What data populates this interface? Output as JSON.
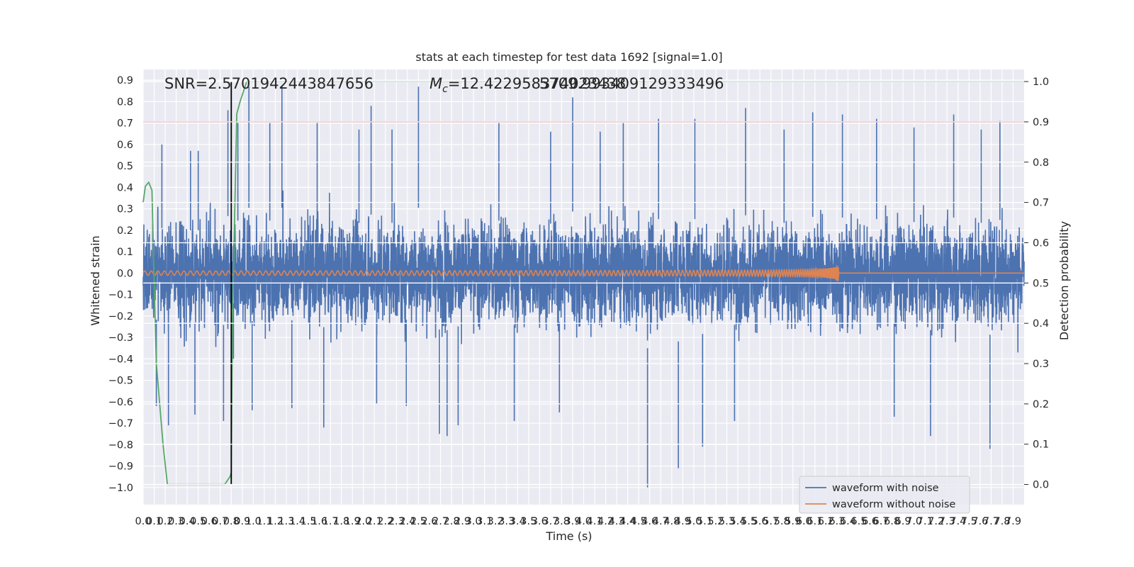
{
  "chart_data": {
    "type": "line",
    "title": "stats at each timestep for test data 1692 [signal=1.0]",
    "xlabel": "Time (s)",
    "ylabel_left": "Whitened strain",
    "ylabel_right": "Detection probability",
    "xlim": [
      0.0,
      8.0
    ],
    "ylim_left": [
      -1.08,
      0.95
    ],
    "ylim_right": [
      -0.05,
      1.03
    ],
    "x_ticks": [
      0.0,
      0.1,
      0.2,
      0.3,
      0.4,
      0.5,
      0.6,
      0.7,
      0.8,
      0.9,
      1.0,
      1.1,
      1.2,
      1.3,
      1.4,
      1.5,
      1.6,
      1.7,
      1.8,
      1.9,
      2.0,
      2.1,
      2.2,
      2.3,
      2.4,
      2.5,
      2.6,
      2.7,
      2.8,
      2.9,
      3.0,
      3.1,
      3.2,
      3.3,
      3.4,
      3.5,
      3.6,
      3.7,
      3.8,
      3.9,
      4.0,
      4.1,
      4.2,
      4.3,
      4.4,
      4.5,
      4.6,
      4.7,
      4.8,
      4.9,
      5.0,
      5.1,
      5.2,
      5.3,
      5.4,
      5.5,
      5.6,
      5.7,
      5.8,
      5.9,
      6.0,
      6.1,
      6.2,
      6.3,
      6.4,
      6.5,
      6.6,
      6.7,
      6.8,
      6.9,
      7.0,
      7.1,
      7.2,
      7.3,
      7.4,
      7.5,
      7.6,
      7.7,
      7.8,
      7.9
    ],
    "x_tick_labels": [
      "0.0",
      "0.1",
      "0.2",
      "0.3",
      "0.4",
      "0.5",
      "0.6",
      "0.7",
      "0.8",
      "0.9",
      "1.0",
      "1.1",
      "1.2",
      "1.3",
      "1.4",
      "1.5",
      "1.6",
      "1.7",
      "1.8",
      "1.9",
      "2.0",
      "2.1",
      "2.2",
      "2.3",
      "2.4",
      "2.5",
      "2.6",
      "2.7",
      "2.8",
      "2.9",
      "3.0",
      "3.1",
      "3.2",
      "3.3",
      "3.4",
      "3.5",
      "3.6",
      "3.7",
      "3.8",
      "3.9",
      "4.0",
      "4.1",
      "4.2",
      "4.3",
      "4.4",
      "4.5",
      "4.6",
      "4.7",
      "4.8",
      "4.9",
      "5.0",
      "5.1",
      "5.2",
      "5.3",
      "5.4",
      "5.5",
      "5.6",
      "5.7",
      "5.8",
      "5.9",
      "6.0",
      "6.1",
      "6.2",
      "6.3",
      "6.4",
      "6.5",
      "6.6",
      "6.7",
      "6.8",
      "6.9",
      "7.0",
      "7.1",
      "7.2",
      "7.3",
      "7.4",
      "7.5",
      "7.6",
      "7.7",
      "7.8",
      "7.9"
    ],
    "y_left_ticks": [
      0.9,
      0.8,
      0.7,
      0.6,
      0.5,
      0.4,
      0.3,
      0.2,
      0.1,
      0.0,
      -0.1,
      -0.2,
      -0.3,
      -0.4,
      -0.5,
      -0.6,
      -0.7,
      -0.8,
      -0.9,
      -1.0
    ],
    "y_left_tick_labels": [
      "0.9",
      "0.8",
      "0.7",
      "0.6",
      "0.5",
      "0.4",
      "0.3",
      "0.2",
      "0.1",
      "0.0",
      "−0.1",
      "−0.2",
      "−0.3",
      "−0.4",
      "−0.5",
      "−0.6",
      "−0.7",
      "−0.8",
      "−0.9",
      "−1.0"
    ],
    "y_right_ticks": [
      1.0,
      0.9,
      0.8,
      0.7,
      0.6,
      0.5,
      0.4,
      0.3,
      0.2,
      0.1,
      0.0
    ],
    "y_right_tick_labels": [
      "1.0",
      "0.9",
      "0.8",
      "0.7",
      "0.6",
      "0.5",
      "0.4",
      "0.3",
      "0.2",
      "0.1",
      "0.0"
    ],
    "annotations": {
      "snr": "SNR=2.5701942443847656",
      "mc_label": "M",
      "mc_sub": "c",
      "mc_value": "=12.422958374023438",
      "mc_overlap": "5709.993409129333496"
    },
    "threshold": {
      "value_right": 0.9,
      "color": "#c44e52"
    },
    "detection_time": 0.8,
    "series": [
      {
        "name": "waveform with noise",
        "color": "#4c72b0",
        "axis": "left",
        "kind": "noise",
        "envelope": 0.3,
        "spikes": [
          [
            0.12,
            -0.62
          ],
          [
            0.17,
            0.6
          ],
          [
            0.23,
            -0.71
          ],
          [
            0.43,
            0.57
          ],
          [
            0.47,
            -0.66
          ],
          [
            0.5,
            0.57
          ],
          [
            0.73,
            -0.69
          ],
          [
            0.77,
            0.76
          ],
          [
            0.82,
            -0.4
          ],
          [
            0.86,
            0.7
          ],
          [
            0.96,
            0.87
          ],
          [
            0.99,
            -0.64
          ],
          [
            1.15,
            0.7
          ],
          [
            1.26,
            0.87
          ],
          [
            1.35,
            -0.63
          ],
          [
            1.58,
            0.7
          ],
          [
            1.64,
            -0.72
          ],
          [
            1.96,
            0.67
          ],
          [
            2.07,
            0.78
          ],
          [
            2.12,
            -0.61
          ],
          [
            2.26,
            0.67
          ],
          [
            2.39,
            -0.62
          ],
          [
            2.5,
            0.87
          ],
          [
            2.69,
            -0.75
          ],
          [
            2.76,
            -0.76
          ],
          [
            2.86,
            -0.71
          ],
          [
            3.23,
            0.7
          ],
          [
            3.37,
            -0.69
          ],
          [
            3.7,
            0.66
          ],
          [
            3.78,
            -0.65
          ],
          [
            3.9,
            0.82
          ],
          [
            4.15,
            0.66
          ],
          [
            4.36,
            0.7
          ],
          [
            4.58,
            -1.0
          ],
          [
            4.68,
            0.72
          ],
          [
            4.86,
            -0.91
          ],
          [
            5.01,
            0.72
          ],
          [
            5.08,
            -0.81
          ],
          [
            5.37,
            -0.69
          ],
          [
            5.47,
            0.77
          ],
          [
            5.82,
            0.67
          ],
          [
            6.08,
            0.75
          ],
          [
            6.35,
            0.74
          ],
          [
            6.66,
            0.72
          ],
          [
            6.82,
            -0.67
          ],
          [
            7.0,
            0.68
          ],
          [
            7.15,
            -0.76
          ],
          [
            7.36,
            0.74
          ],
          [
            7.61,
            0.67
          ],
          [
            7.69,
            -0.82
          ],
          [
            7.78,
            0.71
          ]
        ]
      },
      {
        "name": "waveform without noise",
        "color": "#dd8452",
        "axis": "left",
        "kind": "chirp",
        "merger_time": 6.31,
        "peak_amplitude": 0.12
      },
      {
        "name": "Detection probability",
        "color": "#55a868",
        "axis": "right",
        "kind": "line",
        "x": [
          0.0,
          0.02,
          0.05,
          0.08,
          0.1,
          0.12,
          0.18,
          0.22,
          0.3,
          0.5,
          0.6,
          0.7,
          0.74,
          0.79,
          0.8,
          0.81,
          0.85,
          0.88,
          0.94,
          8.0
        ],
        "y": [
          0.7,
          0.74,
          0.75,
          0.73,
          0.5,
          0.3,
          0.1,
          0.0,
          0.0,
          0.0,
          0.0,
          0.0,
          0.0,
          0.02,
          0.03,
          0.4,
          0.92,
          0.95,
          1.0,
          1.0
        ]
      }
    ],
    "legend": {
      "placement": "lower-right",
      "entries": [
        "waveform with noise",
        "waveform without noise"
      ]
    },
    "grid": true
  }
}
